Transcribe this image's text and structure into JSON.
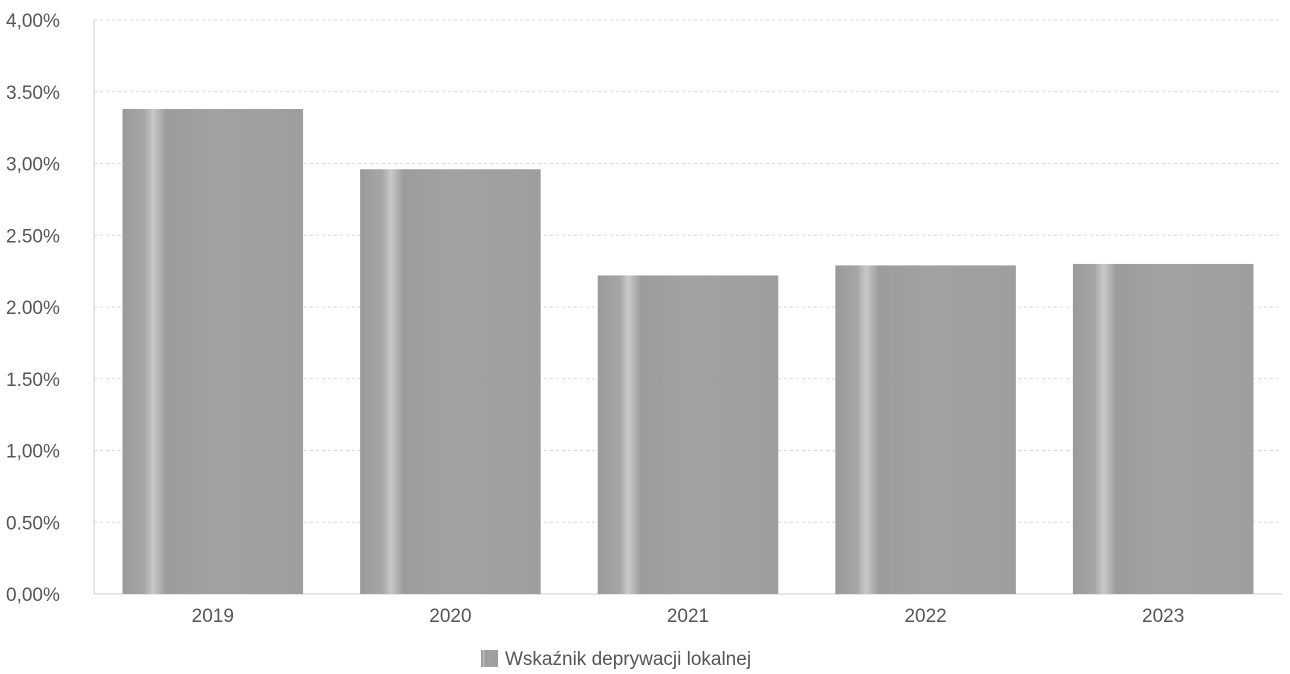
{
  "chart_data": {
    "type": "bar",
    "categories": [
      "2019",
      "2020",
      "2021",
      "2022",
      "2023"
    ],
    "series": [
      {
        "name": "Wskaźnik deprywacji lokalnej",
        "values": [
          3.38,
          2.96,
          2.22,
          2.29,
          2.3
        ],
        "color": "#a3a3a3"
      }
    ],
    "yticks": [
      "0,00%",
      "0.50%",
      "1,00%",
      "1.50%",
      "2.00%",
      "2.50%",
      "3,00%",
      "3.50%",
      "4,00%"
    ],
    "ylim": [
      0,
      4
    ],
    "grid": true,
    "legend_position": "bottom-center",
    "title": "",
    "xlabel": "",
    "ylabel": ""
  }
}
